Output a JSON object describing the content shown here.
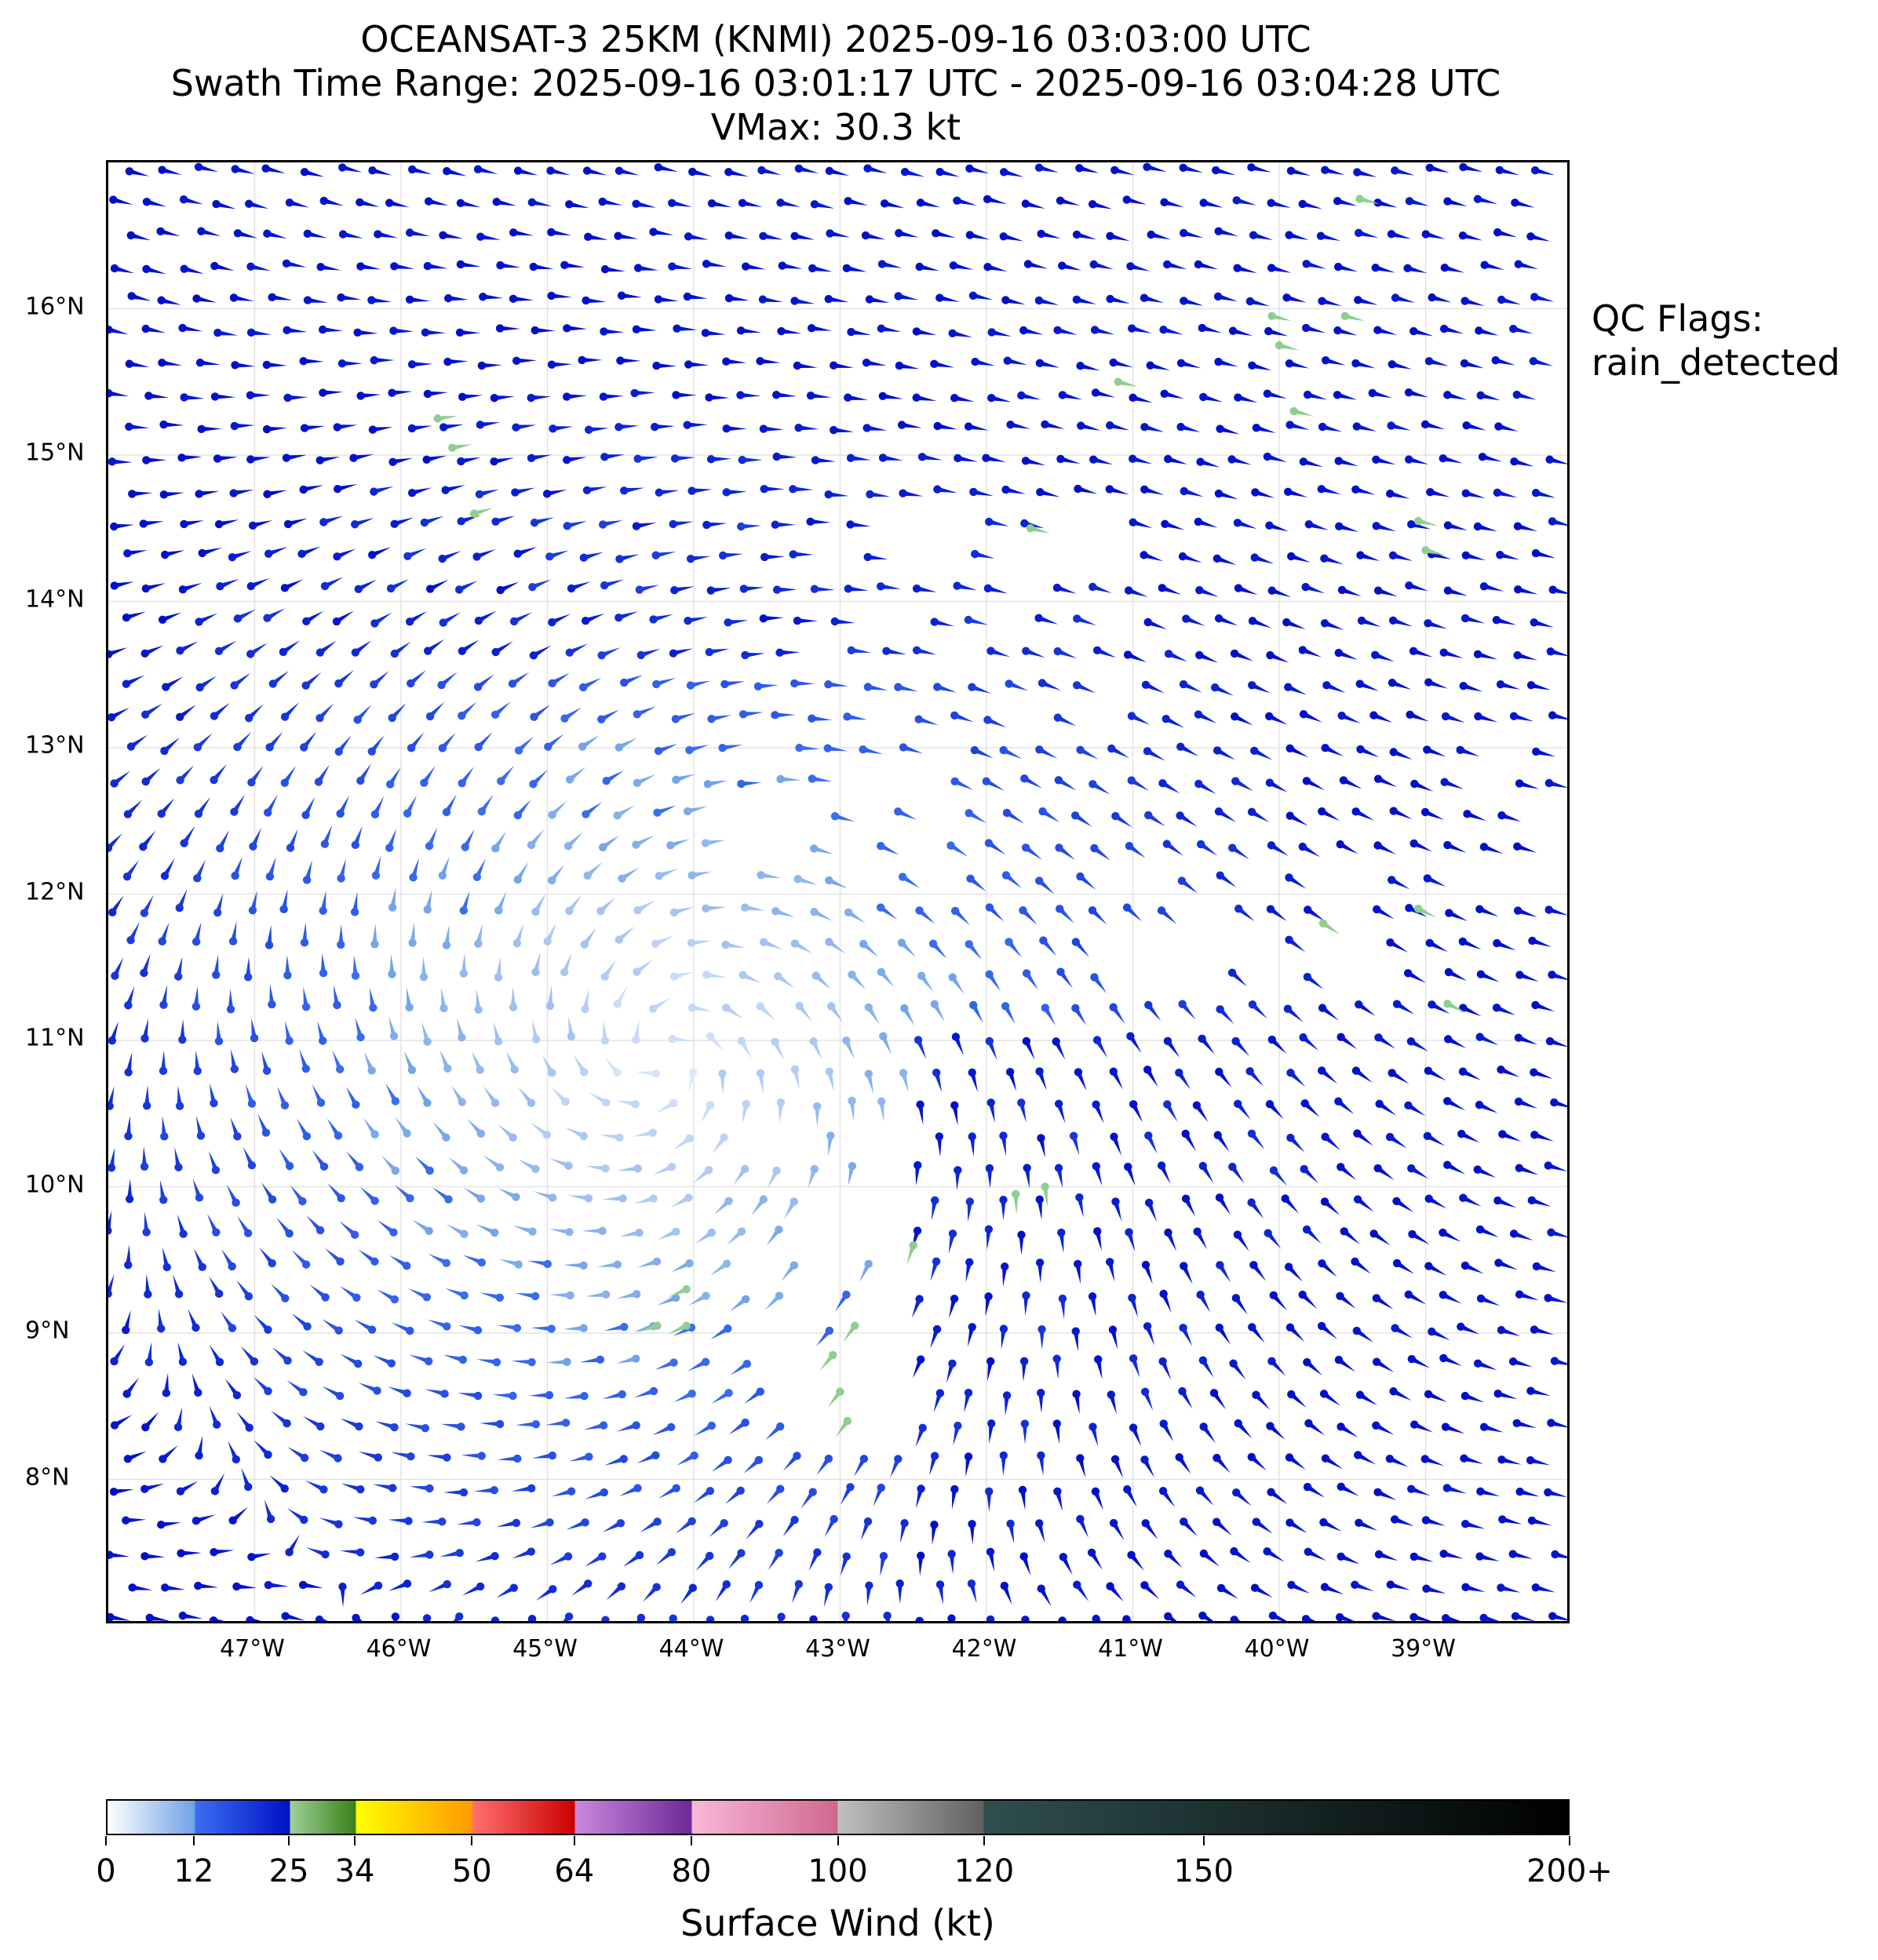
{
  "title": {
    "line1": "OCEANSAT-3 25KM (KNMI) 2025-09-16 03:03:00 UTC",
    "line2": "Swath Time Range: 2025-09-16 03:01:17 UTC - 2025-09-16 03:04:28 UTC",
    "line3": "VMax: 30.3 kt"
  },
  "qc_flags": {
    "label": "QC Flags:",
    "value": "rain_detected"
  },
  "map": {
    "lon_range": [
      -48.0,
      -38.0
    ],
    "lat_range": [
      7.0,
      17.0
    ],
    "grid": true,
    "lon_ticks": [
      {
        "value": -47,
        "label": "47°W"
      },
      {
        "value": -46,
        "label": "46°W"
      },
      {
        "value": -45,
        "label": "45°W"
      },
      {
        "value": -44,
        "label": "44°W"
      },
      {
        "value": -43,
        "label": "43°W"
      },
      {
        "value": -42,
        "label": "42°W"
      },
      {
        "value": -41,
        "label": "41°W"
      },
      {
        "value": -40,
        "label": "40°W"
      },
      {
        "value": -39,
        "label": "39°W"
      }
    ],
    "lat_ticks": [
      {
        "value": 16,
        "label": "16°N"
      },
      {
        "value": 15,
        "label": "15°N"
      },
      {
        "value": 14,
        "label": "14°N"
      },
      {
        "value": 13,
        "label": "13°N"
      },
      {
        "value": 12,
        "label": "12°N"
      },
      {
        "value": 11,
        "label": "11°N"
      },
      {
        "value": 10,
        "label": "10°N"
      },
      {
        "value": 9,
        "label": "9°N"
      },
      {
        "value": 8,
        "label": "8°N"
      }
    ],
    "circulation_center": {
      "lon": -44.2,
      "lat": 10.9
    },
    "vmax_kt": 30.3,
    "rain_flag_color": "#8fce8f",
    "rain_flagged_points": [
      {
        "lon": -45.75,
        "lat": 15.25
      },
      {
        "lon": -45.65,
        "lat": 15.05
      },
      {
        "lon": -45.5,
        "lat": 14.6
      },
      {
        "lon": -41.1,
        "lat": 15.5
      },
      {
        "lon": -41.7,
        "lat": 14.5
      },
      {
        "lon": -40.05,
        "lat": 15.95
      },
      {
        "lon": -40.0,
        "lat": 15.75
      },
      {
        "lon": -39.9,
        "lat": 15.3
      },
      {
        "lon": -39.55,
        "lat": 15.95
      },
      {
        "lon": -39.45,
        "lat": 16.75
      },
      {
        "lon": -39.05,
        "lat": 14.55
      },
      {
        "lon": -39.0,
        "lat": 14.35
      },
      {
        "lon": -39.7,
        "lat": 11.8
      },
      {
        "lon": -39.05,
        "lat": 11.9
      },
      {
        "lon": -38.85,
        "lat": 11.25
      },
      {
        "lon": -41.8,
        "lat": 9.95
      },
      {
        "lon": -41.6,
        "lat": 10.0
      },
      {
        "lon": -42.5,
        "lat": 9.6
      },
      {
        "lon": -44.05,
        "lat": 9.3
      },
      {
        "lon": -44.05,
        "lat": 9.05
      },
      {
        "lon": -44.25,
        "lat": 9.05
      },
      {
        "lon": -42.9,
        "lat": 9.05
      },
      {
        "lon": -43.05,
        "lat": 8.85
      },
      {
        "lon": -43.0,
        "lat": 8.6
      },
      {
        "lon": -42.95,
        "lat": 8.4
      }
    ]
  },
  "colorbar": {
    "label": "Surface Wind (kt)",
    "segments": [
      {
        "from": 0,
        "to": 12,
        "colors": [
          "#ffffff",
          "#6fa2e6"
        ]
      },
      {
        "from": 12,
        "to": 25,
        "colors": [
          "#3b6ff0",
          "#0010c8"
        ]
      },
      {
        "from": 25,
        "to": 34,
        "colors": [
          "#9ed09a",
          "#3a8018"
        ]
      },
      {
        "from": 34,
        "to": 50,
        "colors": [
          "#ffff00",
          "#ff9900"
        ]
      },
      {
        "from": 50,
        "to": 64,
        "colors": [
          "#ff7070",
          "#cc0000"
        ]
      },
      {
        "from": 64,
        "to": 80,
        "colors": [
          "#cc88dd",
          "#6a2a98"
        ]
      },
      {
        "from": 80,
        "to": 100,
        "colors": [
          "#f8b8d8",
          "#d06890"
        ]
      },
      {
        "from": 100,
        "to": 120,
        "colors": [
          "#c0c0c0",
          "#606060"
        ]
      },
      {
        "from": 120,
        "to": 200,
        "colors": [
          "#2f4f4f",
          "#000000"
        ]
      }
    ],
    "ticks": [
      {
        "value": 0,
        "label": "0"
      },
      {
        "value": 12,
        "label": "12"
      },
      {
        "value": 25,
        "label": "25"
      },
      {
        "value": 34,
        "label": "34"
      },
      {
        "value": 50,
        "label": "50"
      },
      {
        "value": 64,
        "label": "64"
      },
      {
        "value": 80,
        "label": "80"
      },
      {
        "value": 100,
        "label": "100"
      },
      {
        "value": 120,
        "label": "120"
      },
      {
        "value": 150,
        "label": "150"
      },
      {
        "value": 200,
        "label": "200+"
      }
    ]
  }
}
